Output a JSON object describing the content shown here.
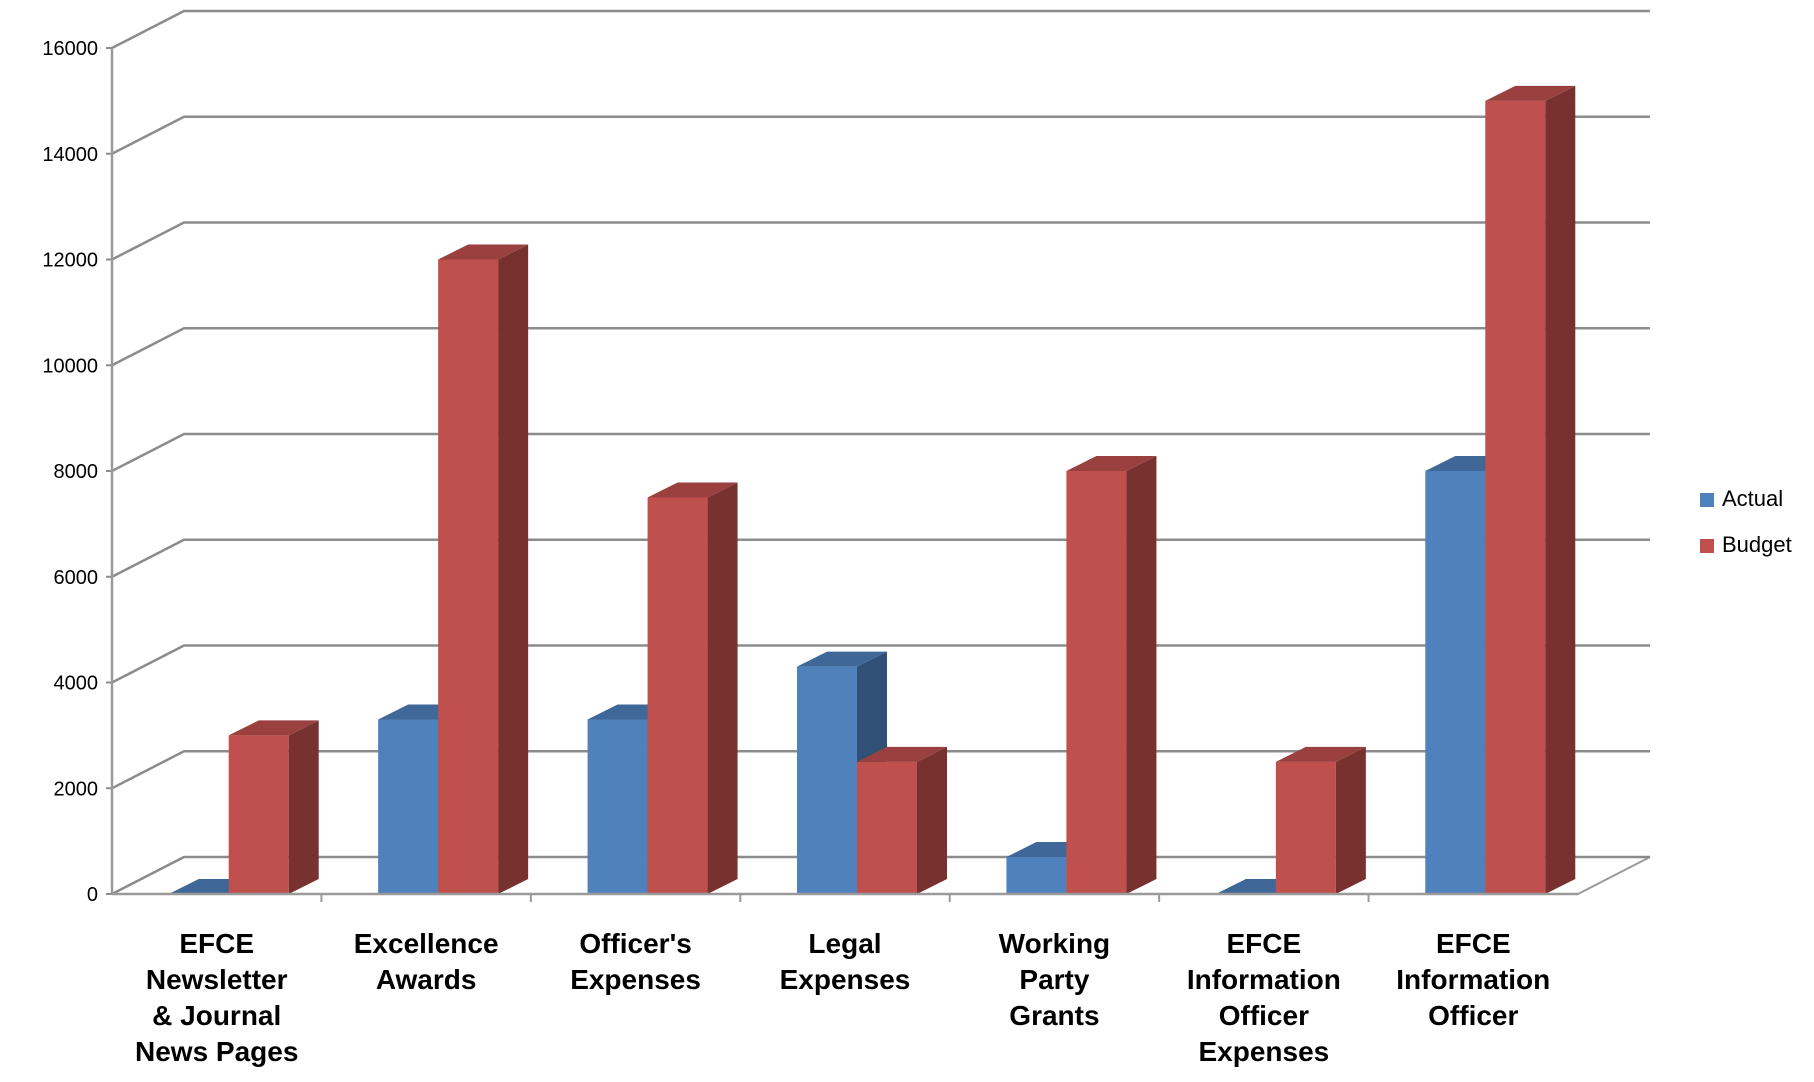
{
  "chart_data": {
    "type": "bar",
    "style": "3d-clustered-column",
    "title": "",
    "xlabel": "",
    "ylabel": "",
    "ylim": [
      0,
      16000
    ],
    "yticks": [
      0,
      2000,
      4000,
      6000,
      8000,
      10000,
      12000,
      14000,
      16000
    ],
    "ytick_labels": [
      "0",
      "2000",
      "4000",
      "6000",
      "8000",
      "10000",
      "12000",
      "14000",
      "16000"
    ],
    "grid": true,
    "legend_position": "right",
    "categories": [
      [
        "EFCE",
        "Newsletter",
        "& Journal",
        "News Pages"
      ],
      [
        "Excellence",
        "Awards"
      ],
      [
        "Officer's",
        "Expenses"
      ],
      [
        "Legal",
        "Expenses"
      ],
      [
        "Working",
        "Party",
        "Grants"
      ],
      [
        "EFCE",
        "Information",
        "Officer",
        "Expenses"
      ],
      [
        "EFCE",
        "Information",
        "Officer"
      ]
    ],
    "series": [
      {
        "name": "Actual",
        "color": "#4F81BD",
        "values": [
          0,
          3300,
          3300,
          4300,
          700,
          0,
          8000
        ]
      },
      {
        "name": "Budget",
        "color": "#C0504D",
        "values": [
          3000,
          12000,
          7500,
          2500,
          8000,
          2500,
          15000
        ]
      }
    ]
  }
}
